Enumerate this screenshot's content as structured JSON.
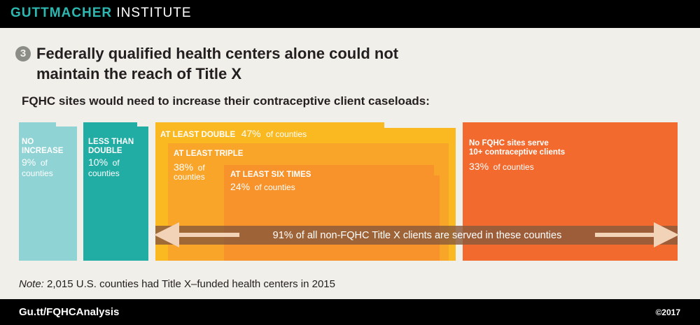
{
  "header": {
    "brand_bold": "GUTTMACHER",
    "brand_light": "INSTITUTE"
  },
  "figure_number": "3",
  "title_line1": "Federally qualified health centers alone could not",
  "title_line2": "maintain the reach of Title X",
  "subtitle": "FQHC sites would need to increase their contraceptive client caseloads:",
  "colors": {
    "no_increase": "#8fd3d5",
    "less_than_double": "#22ada4",
    "at_least_double": "#fbb921",
    "at_least_triple": "#f9a52a",
    "at_least_six": "#f7932a",
    "no_fqhc": "#f26a2e",
    "arrow_band": "#8a5a3a"
  },
  "chart_data": {
    "type": "bar",
    "categories": [
      "NO INCREASE",
      "LESS THAN DOUBLE",
      "AT LEAST DOUBLE",
      "AT LEAST TRIPLE",
      "AT LEAST SIX TIMES",
      "No FQHC sites serve 10+ contraceptive clients"
    ],
    "values": [
      9,
      10,
      47,
      38,
      24,
      33
    ],
    "unit": "% of counties",
    "labels": {
      "no_increase": {
        "line1": "NO",
        "line2": "INCREASE",
        "value": "9%",
        "unit1": "of",
        "unit2": "counties"
      },
      "less_than_double": {
        "line1": "LESS THAN",
        "line2": "DOUBLE",
        "value": "10%",
        "unit1": "of",
        "unit2": "counties"
      },
      "at_least_double": {
        "line1": "AT LEAST DOUBLE",
        "value": "47%",
        "unit": "of counties"
      },
      "at_least_triple": {
        "line1": "AT LEAST TRIPLE",
        "value": "38%",
        "unit1": "of",
        "unit2": "counties"
      },
      "at_least_six": {
        "line1": "AT LEAST SIX TIMES",
        "value": "24%",
        "unit": "of counties"
      },
      "no_fqhc": {
        "line1": "No FQHC sites serve",
        "line2": "10+ contraceptive clients",
        "value": "33%",
        "unit": "of counties"
      }
    },
    "annotation": "91% of all non-FQHC Title X clients are served in these counties"
  },
  "note_label": "Note:",
  "note_text": "2,015 U.S. counties had Title X–funded health centers in 2015",
  "footer": {
    "url": "Gu.tt/FQHCAnalysis",
    "copyright": "©2017"
  }
}
